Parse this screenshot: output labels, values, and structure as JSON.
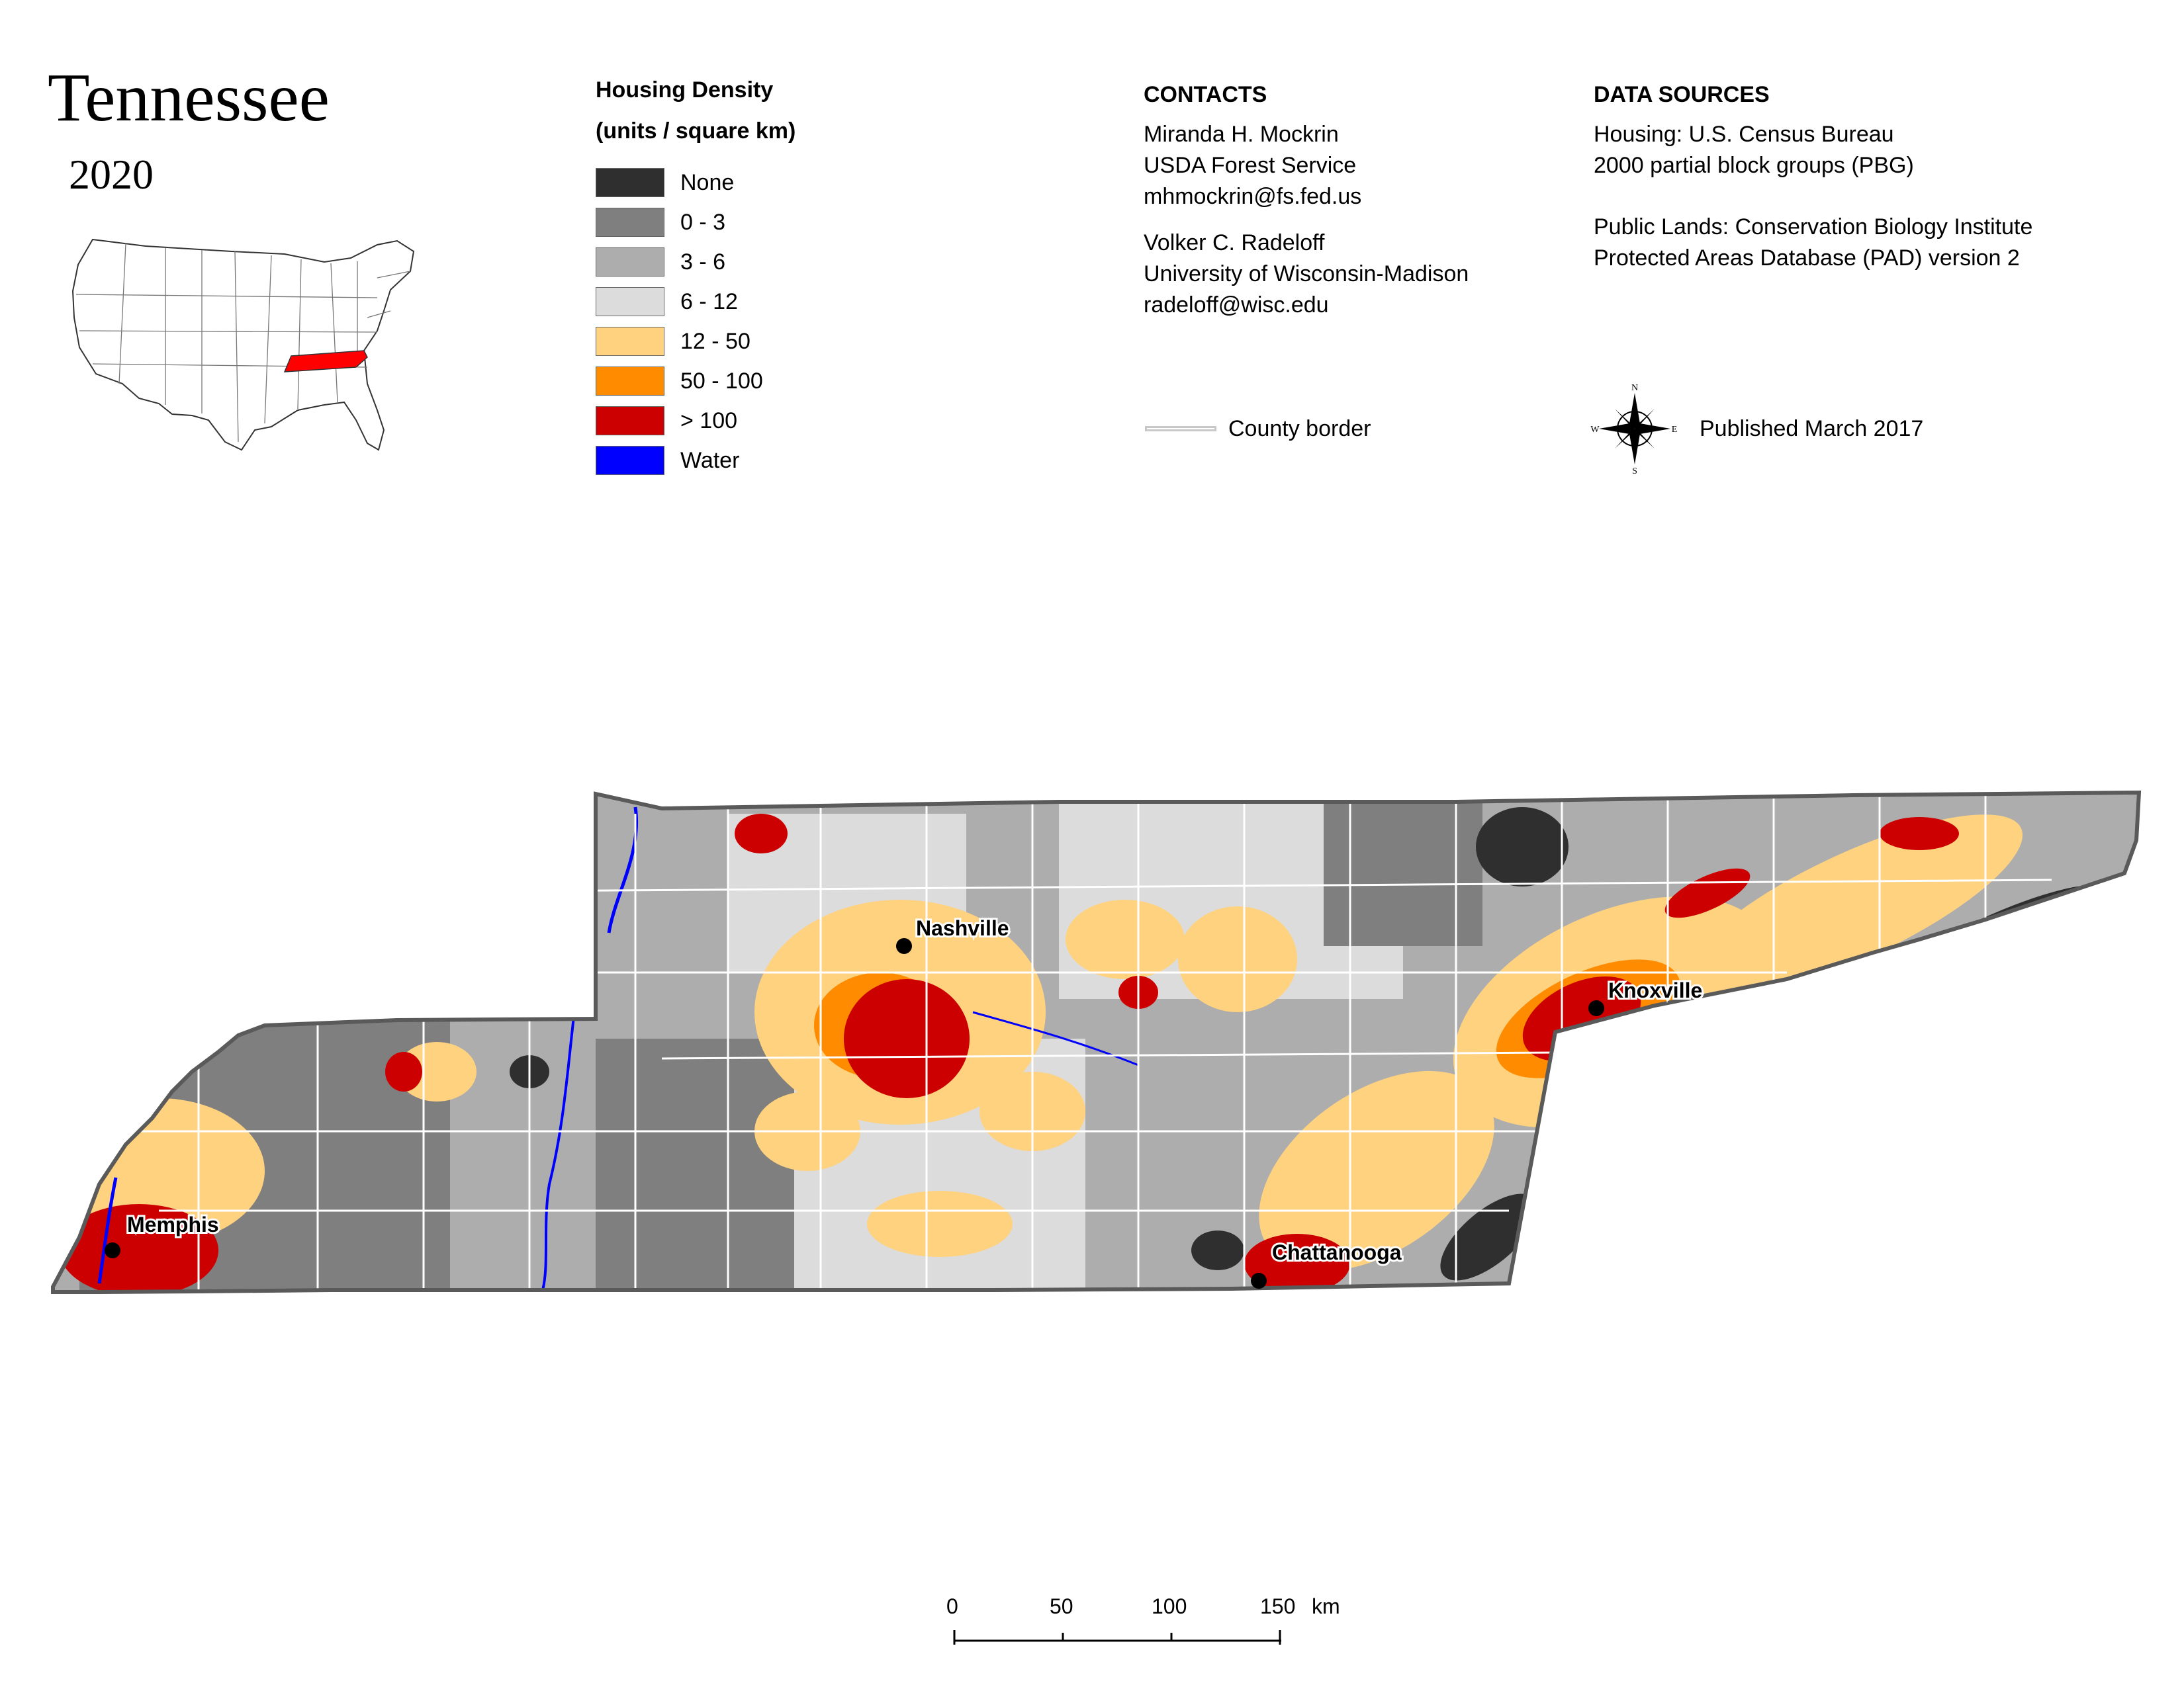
{
  "title": "Tennessee",
  "year": "2020",
  "legend": {
    "title": "Housing Density",
    "subtitle": "(units / square km)",
    "items": [
      {
        "label": "None",
        "color": "#2f2f2f"
      },
      {
        "label": "0 - 3",
        "color": "#7f7f7f"
      },
      {
        "label": "3 - 6",
        "color": "#adadad"
      },
      {
        "label": "6 - 12",
        "color": "#dcdcdc"
      },
      {
        "label": "12 - 50",
        "color": "#ffd27f"
      },
      {
        "label": "50 - 100",
        "color": "#ff8c00"
      },
      {
        "label": "> 100",
        "color": "#cc0000"
      },
      {
        "label": "Water",
        "color": "#0000ff"
      }
    ]
  },
  "contacts": {
    "heading": "CONTACTS",
    "person1": [
      "Miranda H. Mockrin",
      "USDA Forest Service",
      "mhmockrin@fs.fed.us"
    ],
    "person2": [
      "Volker C. Radeloff",
      "University of Wisconsin-Madison",
      "radeloff@wisc.edu"
    ]
  },
  "sources": {
    "heading": "DATA SOURCES",
    "housing": [
      "Housing: U.S. Census Bureau",
      "2000 partial block groups (PBG)"
    ],
    "public_lands": [
      "Public Lands: Conservation Biology Institute",
      "Protected Areas Database (PAD) version 2"
    ]
  },
  "county_border_label": "County border",
  "published": "Published March 2017",
  "compass": {
    "n": "N",
    "s": "S",
    "e": "E",
    "w": "W"
  },
  "cities": [
    "Nashville",
    "Knoxville",
    "Memphis",
    "Chattanooga"
  ],
  "scale": {
    "labels": [
      "0",
      "50",
      "100",
      "150"
    ],
    "unit": "km"
  },
  "colors": {
    "state_outline": "#5a5a5a",
    "county_border": "#ffffff",
    "highlight_state": "#ff0000"
  }
}
